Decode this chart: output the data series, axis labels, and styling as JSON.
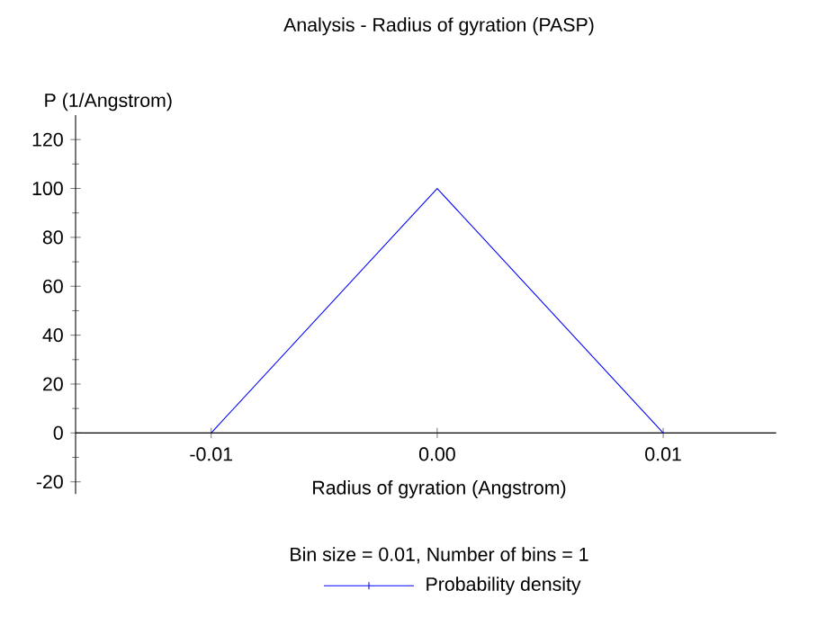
{
  "chart_data": {
    "type": "line",
    "title": "Analysis - Radius of gyration (PASP)",
    "xlabel": "Radius of gyration (Angstrom)",
    "ylabel": "P (1/Angstrom)",
    "annotations": [
      "Bin size = 0.01, Number of bins = 1"
    ],
    "x": [
      -0.01,
      0,
      0.01
    ],
    "series": [
      {
        "name": "Probability density",
        "color": "#0000ff",
        "values": [
          0,
          100,
          0
        ]
      }
    ],
    "xlim": [
      -0.016,
      0.015
    ],
    "ylim": [
      -25,
      130
    ],
    "xticks": [
      -0.01,
      {
        "value": 0,
        "label": "0.00"
      },
      0.01
    ],
    "yticks": [
      -20,
      0,
      20,
      40,
      60,
      80,
      100,
      120
    ],
    "legend": "bottom",
    "grid": false
  }
}
